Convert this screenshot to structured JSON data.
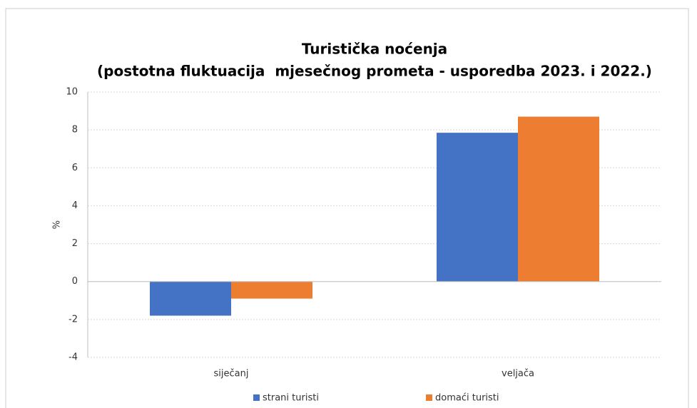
{
  "chart_data": {
    "type": "bar",
    "title": "Turistička noćenja",
    "subtitle": "(postotna fluktuacija  mjesečnog prometa - usporedba 2023. i 2022.)",
    "y_label": "%",
    "categories": [
      "siječanj",
      "veljača"
    ],
    "series": [
      {
        "name": "strani turisti",
        "color": "#4472c4",
        "values": [
          -1.8,
          7.85
        ]
      },
      {
        "name": "domaći turisti",
        "color": "#ed7d31",
        "values": [
          -0.9,
          8.7
        ]
      }
    ],
    "ylim": [
      -4,
      10
    ],
    "yticks": [
      -4,
      -2,
      0,
      2,
      4,
      6,
      8,
      10
    ],
    "grid": true,
    "legend": "bottom"
  }
}
